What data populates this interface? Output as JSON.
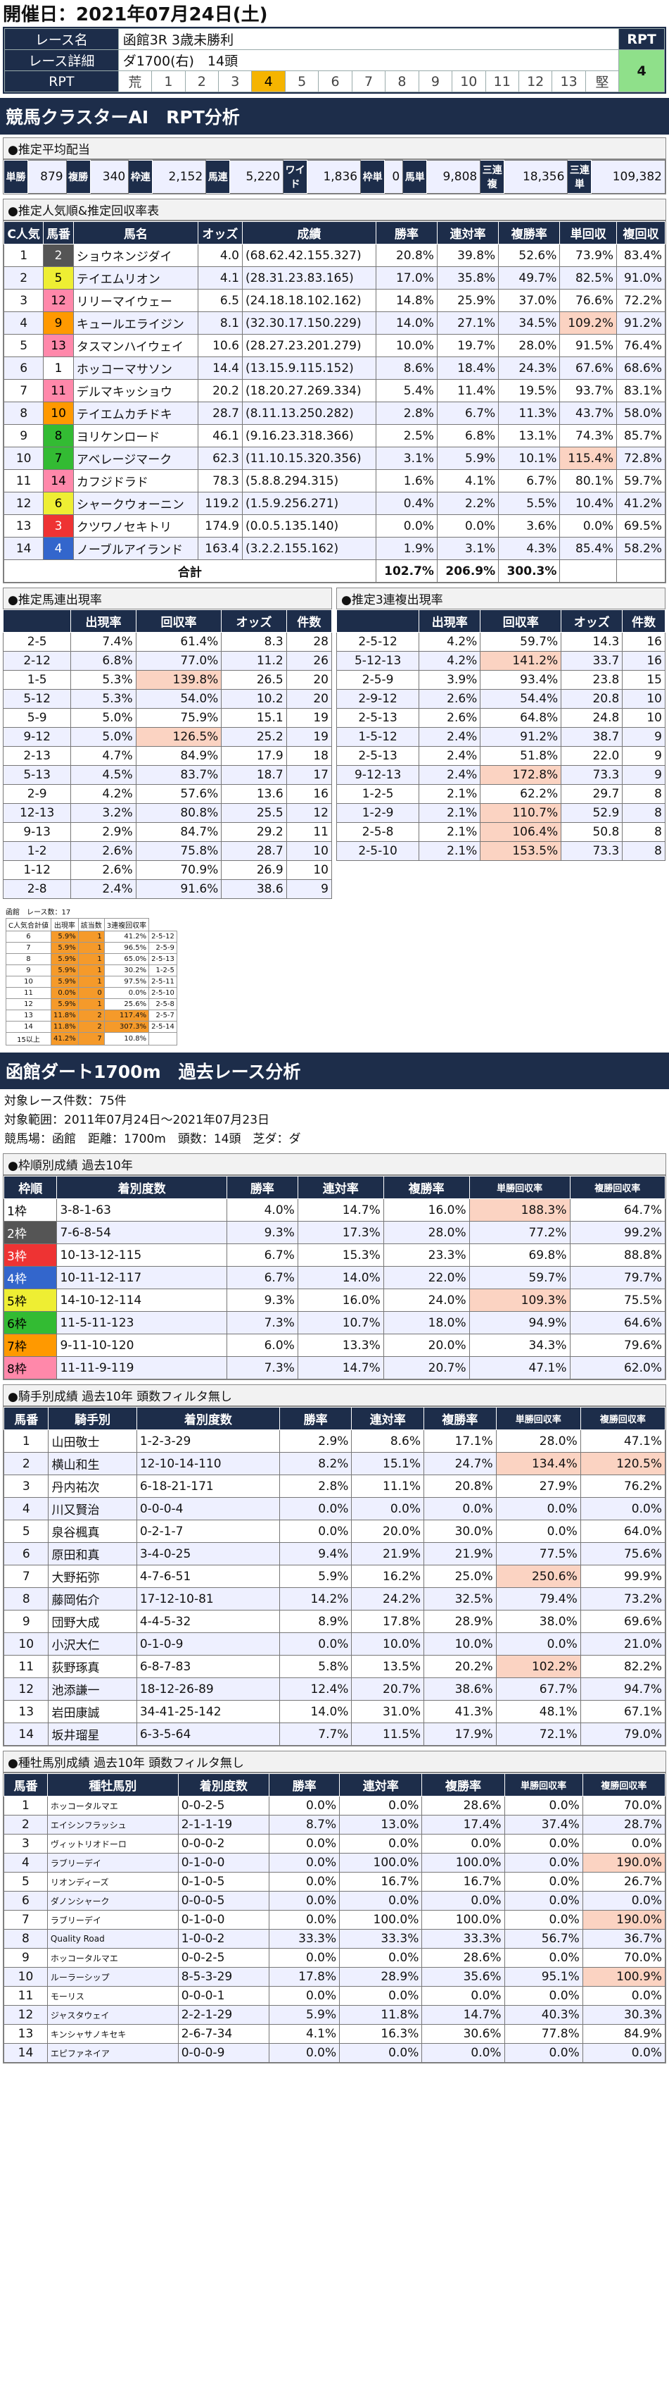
{
  "date": "開催日：2021年07月24日(土)",
  "race": {
    "name_label": "レース名",
    "name": "函館3R 3歳未勝利",
    "detail_label": "レース詳細",
    "detail": "ダ1700(右)　14頭",
    "rpt_label": "RPT",
    "rpt_header": "RPT",
    "rpt_value": "4",
    "scale": [
      "荒",
      "1",
      "2",
      "3",
      "4",
      "5",
      "6",
      "7",
      "8",
      "9",
      "10",
      "11",
      "12",
      "13",
      "堅"
    ],
    "selected": "4"
  },
  "ai_title": "競馬クラスターAI　RPT分析",
  "payout": {
    "title": "●推定平均配当",
    "items": [
      [
        "単勝",
        "879"
      ],
      [
        "複勝",
        "340"
      ],
      [
        "枠連",
        "2,152"
      ],
      [
        "馬連",
        "5,220"
      ],
      [
        "ワイド",
        "1,836"
      ],
      [
        "枠単",
        "0"
      ],
      [
        "馬単",
        "9,808"
      ],
      [
        "三連複",
        "18,356"
      ],
      [
        "三連単",
        "109,382"
      ]
    ]
  },
  "pop": {
    "title": "●推定人気順&推定回収率表",
    "headers": [
      "C人気",
      "馬番",
      "馬名",
      "オッズ",
      "成績",
      "勝率",
      "連対率",
      "複勝率",
      "単回収",
      "複回収"
    ],
    "rows": [
      [
        "1",
        "2",
        "ショウネンジダイ",
        "4.0",
        "(68.62.42.155.327)",
        "20.8%",
        "39.8%",
        "52.6%",
        "73.9%",
        "83.4%"
      ],
      [
        "2",
        "5",
        "テイエムリオン",
        "4.1",
        "(28.31.23.83.165)",
        "17.0%",
        "35.8%",
        "49.7%",
        "82.5%",
        "91.0%"
      ],
      [
        "3",
        "12",
        "リリーマイウェー",
        "6.5",
        "(24.18.18.102.162)",
        "14.8%",
        "25.9%",
        "37.0%",
        "76.6%",
        "72.2%"
      ],
      [
        "4",
        "9",
        "キュールエライジン",
        "8.1",
        "(32.30.17.150.229)",
        "14.0%",
        "27.1%",
        "34.5%",
        "109.2%",
        "91.2%"
      ],
      [
        "5",
        "13",
        "タスマンハイウェイ",
        "10.6",
        "(28.27.23.201.279)",
        "10.0%",
        "19.7%",
        "28.0%",
        "91.5%",
        "76.4%"
      ],
      [
        "6",
        "1",
        "ホッコーマサソン",
        "14.4",
        "(13.15.9.115.152)",
        "8.6%",
        "18.4%",
        "24.3%",
        "67.6%",
        "68.6%"
      ],
      [
        "7",
        "11",
        "デルマキッショウ",
        "20.2",
        "(18.20.27.269.334)",
        "5.4%",
        "11.4%",
        "19.5%",
        "93.7%",
        "83.1%"
      ],
      [
        "8",
        "10",
        "テイエムカチドキ",
        "28.7",
        "(8.11.13.250.282)",
        "2.8%",
        "6.7%",
        "11.3%",
        "43.7%",
        "58.0%"
      ],
      [
        "9",
        "8",
        "ヨリケンロード",
        "46.1",
        "(9.16.23.318.366)",
        "2.5%",
        "6.8%",
        "13.1%",
        "74.3%",
        "85.7%"
      ],
      [
        "10",
        "7",
        "アベレージマーク",
        "62.3",
        "(11.10.15.320.356)",
        "3.1%",
        "5.9%",
        "10.1%",
        "115.4%",
        "72.8%"
      ],
      [
        "11",
        "14",
        "カフジドラド",
        "78.3",
        "(5.8.8.294.315)",
        "1.6%",
        "4.1%",
        "6.7%",
        "80.1%",
        "59.7%"
      ],
      [
        "12",
        "6",
        "シャークウォーニン",
        "119.2",
        "(1.5.9.256.271)",
        "0.4%",
        "2.2%",
        "5.5%",
        "10.4%",
        "41.2%"
      ],
      [
        "13",
        "3",
        "クツワノセキトリ",
        "174.9",
        "(0.0.5.135.140)",
        "0.0%",
        "0.0%",
        "3.6%",
        "0.0%",
        "69.5%"
      ],
      [
        "14",
        "4",
        "ノーブルアイランド",
        "163.4",
        "(3.2.2.155.162)",
        "1.9%",
        "3.1%",
        "4.3%",
        "85.4%",
        "58.2%"
      ]
    ],
    "total_label": "合計",
    "total": [
      "102.7%",
      "206.9%",
      "300.3%"
    ]
  },
  "umaren": {
    "title": "●推定馬連出現率",
    "headers": [
      "",
      "出現率",
      "回収率",
      "オッズ",
      "件数"
    ],
    "rows": [
      [
        "2-5",
        "7.4%",
        "61.4%",
        "8.3",
        "28"
      ],
      [
        "2-12",
        "6.8%",
        "77.0%",
        "11.2",
        "26"
      ],
      [
        "1-5",
        "5.3%",
        "139.8%",
        "26.5",
        "20"
      ],
      [
        "5-12",
        "5.3%",
        "54.0%",
        "10.2",
        "20"
      ],
      [
        "5-9",
        "5.0%",
        "75.9%",
        "15.1",
        "19"
      ],
      [
        "9-12",
        "5.0%",
        "126.5%",
        "25.2",
        "19"
      ],
      [
        "2-13",
        "4.7%",
        "84.9%",
        "17.9",
        "18"
      ],
      [
        "5-13",
        "4.5%",
        "83.7%",
        "18.7",
        "17"
      ],
      [
        "2-9",
        "4.2%",
        "57.6%",
        "13.6",
        "16"
      ],
      [
        "12-13",
        "3.2%",
        "80.8%",
        "25.5",
        "12"
      ],
      [
        "9-13",
        "2.9%",
        "84.7%",
        "29.2",
        "11"
      ],
      [
        "1-2",
        "2.6%",
        "75.8%",
        "28.7",
        "10"
      ],
      [
        "1-12",
        "2.6%",
        "70.9%",
        "26.9",
        "10"
      ],
      [
        "2-8",
        "2.4%",
        "91.6%",
        "38.6",
        "9"
      ]
    ]
  },
  "sanren": {
    "title": "●推定3連複出現率",
    "headers": [
      "",
      "出現率",
      "回収率",
      "オッズ",
      "件数"
    ],
    "rows": [
      [
        "2-5-12",
        "4.2%",
        "59.7%",
        "14.3",
        "16"
      ],
      [
        "5-12-13",
        "4.2%",
        "141.2%",
        "33.7",
        "16"
      ],
      [
        "2-5-9",
        "3.9%",
        "93.4%",
        "23.8",
        "15"
      ],
      [
        "2-9-12",
        "2.6%",
        "54.4%",
        "20.8",
        "10"
      ],
      [
        "2-5-13",
        "2.6%",
        "64.8%",
        "24.8",
        "10"
      ],
      [
        "1-5-12",
        "2.4%",
        "91.2%",
        "38.7",
        "9"
      ],
      [
        "2-5-13",
        "2.4%",
        "51.8%",
        "22.0",
        "9"
      ],
      [
        "9-12-13",
        "2.4%",
        "172.8%",
        "73.3",
        "9"
      ],
      [
        "1-2-5",
        "2.1%",
        "62.2%",
        "29.7",
        "8"
      ],
      [
        "1-2-9",
        "2.1%",
        "110.7%",
        "52.9",
        "8"
      ],
      [
        "2-5-8",
        "2.1%",
        "106.4%",
        "50.8",
        "8"
      ],
      [
        "2-5-10",
        "2.1%",
        "153.5%",
        "73.3",
        "8"
      ]
    ]
  },
  "mini": {
    "title": "函館　レース数：17",
    "headers": [
      "C人気合計値",
      "出現率",
      "該当数",
      "3連複回収率"
    ],
    "rows": [
      [
        "6",
        "5.9%",
        "1",
        "41.2%",
        "2-5-12"
      ],
      [
        "7",
        "5.9%",
        "1",
        "96.5%",
        "2-5-9"
      ],
      [
        "8",
        "5.9%",
        "1",
        "65.0%",
        "2-5-13"
      ],
      [
        "9",
        "5.9%",
        "1",
        "30.2%",
        "1-2-5"
      ],
      [
        "10",
        "5.9%",
        "1",
        "97.5%",
        "2-5-11"
      ],
      [
        "11",
        "0.0%",
        "0",
        "0.0%",
        "2-5-10"
      ],
      [
        "12",
        "5.9%",
        "1",
        "25.6%",
        "2-5-8"
      ],
      [
        "13",
        "11.8%",
        "2",
        "117.4%",
        "2-5-7"
      ],
      [
        "14",
        "11.8%",
        "2",
        "307.3%",
        "2-5-14"
      ],
      [
        "15以上",
        "41.2%",
        "7",
        "10.8%",
        ""
      ]
    ]
  },
  "course": {
    "title": "函館ダート1700m　過去レース分析",
    "lines": [
      "対象レース件数：75件",
      "対象範囲：2011年07月24日～2021年07月23日",
      "競馬場：函館　距離：1700m　頭数：14頭　芝ダ：ダ"
    ]
  },
  "waku": {
    "title": "●枠順別成績 過去10年",
    "headers": [
      "枠順",
      "着別度数",
      "勝率",
      "連対率",
      "複勝率",
      "単勝回収率",
      "複勝回収率"
    ],
    "rows": [
      [
        "1枠",
        "3-8-1-63",
        "4.0%",
        "14.7%",
        "16.0%",
        "188.3%",
        "64.7%"
      ],
      [
        "2枠",
        "7-6-8-54",
        "9.3%",
        "17.3%",
        "28.0%",
        "77.2%",
        "99.2%"
      ],
      [
        "3枠",
        "10-13-12-115",
        "6.7%",
        "15.3%",
        "23.3%",
        "69.8%",
        "88.8%"
      ],
      [
        "4枠",
        "10-11-12-117",
        "6.7%",
        "14.0%",
        "22.0%",
        "59.7%",
        "79.7%"
      ],
      [
        "5枠",
        "14-10-12-114",
        "9.3%",
        "16.0%",
        "24.0%",
        "109.3%",
        "75.5%"
      ],
      [
        "6枠",
        "11-5-11-123",
        "7.3%",
        "10.7%",
        "18.0%",
        "94.9%",
        "64.6%"
      ],
      [
        "7枠",
        "9-11-10-120",
        "6.0%",
        "13.3%",
        "20.0%",
        "34.3%",
        "79.6%"
      ],
      [
        "8枠",
        "11-11-9-119",
        "7.3%",
        "14.7%",
        "20.7%",
        "47.1%",
        "62.0%"
      ]
    ]
  },
  "jockey": {
    "title": "●騎手別成績 過去10年 頭数フィルタ無し",
    "headers": [
      "馬番",
      "騎手別",
      "着別度数",
      "勝率",
      "連対率",
      "複勝率",
      "単勝回収率",
      "複勝回収率"
    ],
    "rows": [
      [
        "1",
        "山田敬士",
        "1-2-3-29",
        "2.9%",
        "8.6%",
        "17.1%",
        "28.0%",
        "47.1%"
      ],
      [
        "2",
        "横山和生",
        "12-10-14-110",
        "8.2%",
        "15.1%",
        "24.7%",
        "134.4%",
        "120.5%"
      ],
      [
        "3",
        "丹内祐次",
        "6-18-21-171",
        "2.8%",
        "11.1%",
        "20.8%",
        "27.9%",
        "76.2%"
      ],
      [
        "4",
        "川又賢治",
        "0-0-0-4",
        "0.0%",
        "0.0%",
        "0.0%",
        "0.0%",
        "0.0%"
      ],
      [
        "5",
        "泉谷楓真",
        "0-2-1-7",
        "0.0%",
        "20.0%",
        "30.0%",
        "0.0%",
        "64.0%"
      ],
      [
        "6",
        "原田和真",
        "3-4-0-25",
        "9.4%",
        "21.9%",
        "21.9%",
        "77.5%",
        "75.6%"
      ],
      [
        "7",
        "大野拓弥",
        "4-7-6-51",
        "5.9%",
        "16.2%",
        "25.0%",
        "250.6%",
        "99.9%"
      ],
      [
        "8",
        "藤岡佑介",
        "17-12-10-81",
        "14.2%",
        "24.2%",
        "32.5%",
        "79.4%",
        "73.2%"
      ],
      [
        "9",
        "団野大成",
        "4-4-5-32",
        "8.9%",
        "17.8%",
        "28.9%",
        "38.0%",
        "69.6%"
      ],
      [
        "10",
        "小沢大仁",
        "0-1-0-9",
        "0.0%",
        "10.0%",
        "10.0%",
        "0.0%",
        "21.0%"
      ],
      [
        "11",
        "荻野琢真",
        "6-8-7-83",
        "5.8%",
        "13.5%",
        "20.2%",
        "102.2%",
        "82.2%"
      ],
      [
        "12",
        "池添謙一",
        "18-12-26-89",
        "12.4%",
        "20.7%",
        "38.6%",
        "67.7%",
        "94.7%"
      ],
      [
        "13",
        "岩田康誠",
        "34-41-25-142",
        "14.0%",
        "31.0%",
        "41.3%",
        "48.1%",
        "67.1%"
      ],
      [
        "14",
        "坂井瑠星",
        "6-3-5-64",
        "7.7%",
        "11.5%",
        "17.9%",
        "72.1%",
        "79.0%"
      ]
    ]
  },
  "sire": {
    "title": "●種牡馬別成績 過去10年 頭数フィルタ無し",
    "headers": [
      "馬番",
      "種牡馬別",
      "着別度数",
      "勝率",
      "連対率",
      "複勝率",
      "単勝回収率",
      "複勝回収率"
    ],
    "rows": [
      [
        "1",
        "ホッコータルマエ",
        "0-0-2-5",
        "0.0%",
        "0.0%",
        "28.6%",
        "0.0%",
        "70.0%"
      ],
      [
        "2",
        "エイシンフラッシュ",
        "2-1-1-19",
        "8.7%",
        "13.0%",
        "17.4%",
        "37.4%",
        "28.7%"
      ],
      [
        "3",
        "ヴィットリオドーロ",
        "0-0-0-2",
        "0.0%",
        "0.0%",
        "0.0%",
        "0.0%",
        "0.0%"
      ],
      [
        "4",
        "ラブリーデイ",
        "0-1-0-0",
        "0.0%",
        "100.0%",
        "100.0%",
        "0.0%",
        "190.0%"
      ],
      [
        "5",
        "リオンディーズ",
        "0-1-0-5",
        "0.0%",
        "16.7%",
        "16.7%",
        "0.0%",
        "26.7%"
      ],
      [
        "6",
        "ダノンシャーク",
        "0-0-0-5",
        "0.0%",
        "0.0%",
        "0.0%",
        "0.0%",
        "0.0%"
      ],
      [
        "7",
        "ラブリーデイ",
        "0-1-0-0",
        "0.0%",
        "100.0%",
        "100.0%",
        "0.0%",
        "190.0%"
      ],
      [
        "8",
        "Quality Road",
        "1-0-0-2",
        "33.3%",
        "33.3%",
        "33.3%",
        "56.7%",
        "36.7%"
      ],
      [
        "9",
        "ホッコータルマエ",
        "0-0-2-5",
        "0.0%",
        "0.0%",
        "28.6%",
        "0.0%",
        "70.0%"
      ],
      [
        "10",
        "ルーラーシップ",
        "8-5-3-29",
        "17.8%",
        "28.9%",
        "35.6%",
        "95.1%",
        "100.9%"
      ],
      [
        "11",
        "モーリス",
        "0-0-0-1",
        "0.0%",
        "0.0%",
        "0.0%",
        "0.0%",
        "0.0%"
      ],
      [
        "12",
        "ジャスタウェイ",
        "2-2-1-29",
        "5.9%",
        "11.8%",
        "14.7%",
        "40.3%",
        "30.3%"
      ],
      [
        "13",
        "キンシャサノキセキ",
        "2-6-7-34",
        "4.1%",
        "16.3%",
        "30.6%",
        "77.8%",
        "84.9%"
      ],
      [
        "14",
        "エピファネイア",
        "0-0-0-9",
        "0.0%",
        "0.0%",
        "0.0%",
        "0.0%",
        "0.0%"
      ]
    ]
  }
}
